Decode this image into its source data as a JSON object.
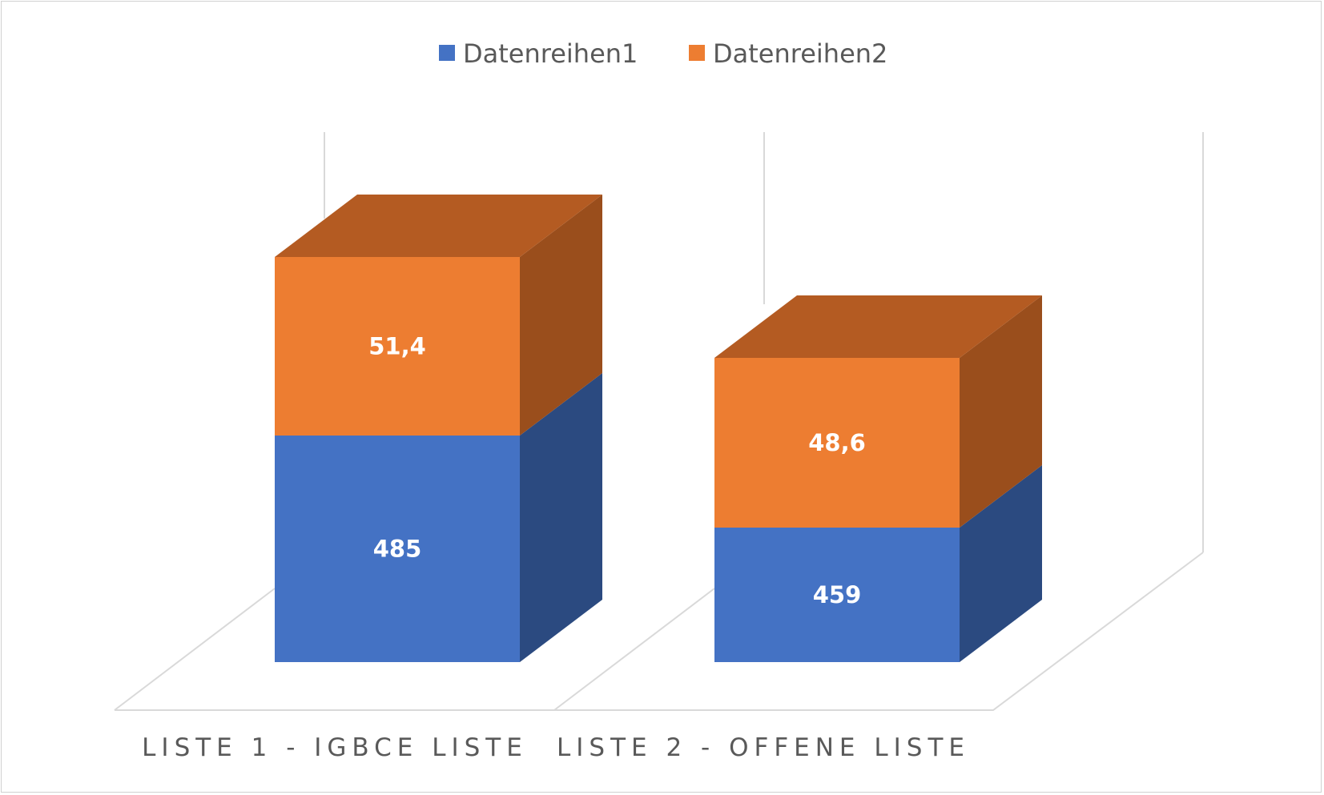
{
  "chart_data": {
    "type": "bar",
    "stacked": true,
    "style": "3d",
    "categories": [
      "LISTE 1 - IGBCE LISTE",
      "LISTE 2 - OFFENE LISTE"
    ],
    "series": [
      {
        "name": "Datenreihen1",
        "values": [
          485,
          459
        ],
        "labels": [
          "485",
          "459"
        ],
        "color": "#4472c4",
        "side_color": "#2b4a80"
      },
      {
        "name": "Datenreihen2",
        "values": [
          51.4,
          48.6
        ],
        "labels": [
          "51,4",
          "48,6"
        ],
        "color": "#ed7d31",
        "side_color": "#9a4e1c",
        "top_color": "#b45b22"
      }
    ],
    "legend_position": "top",
    "grid": false,
    "frame_color": "#d9d9d9"
  }
}
